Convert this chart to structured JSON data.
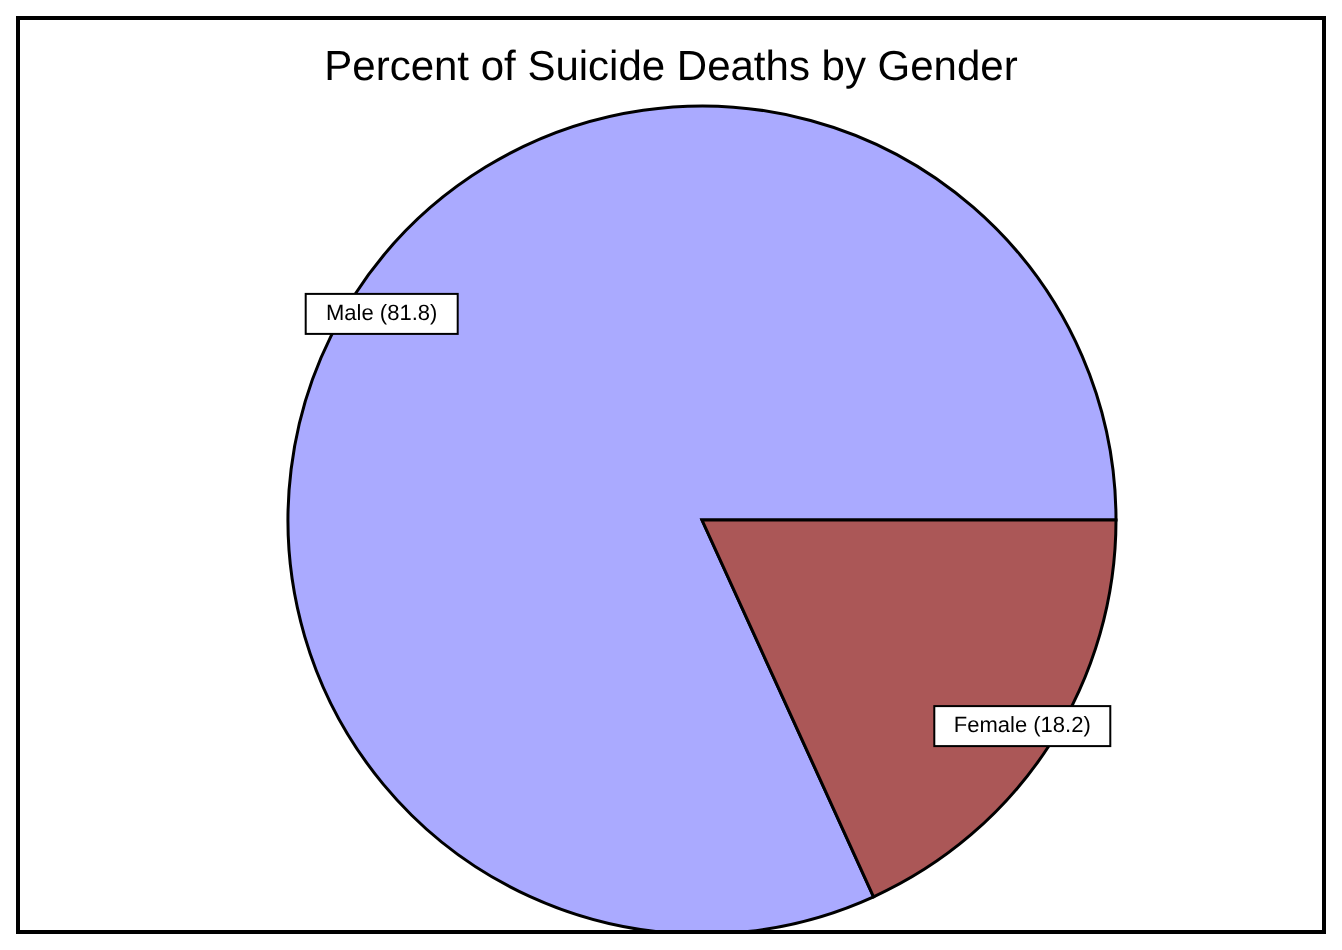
{
  "chart_data": {
    "type": "pie",
    "title": "Percent of Suicide Deaths by Gender",
    "categories": [
      "Male (81.8)",
      "Female (18.2)"
    ],
    "values": [
      81.8,
      18.2
    ],
    "colors": [
      "#aaaaff",
      "#ab5757"
    ]
  }
}
